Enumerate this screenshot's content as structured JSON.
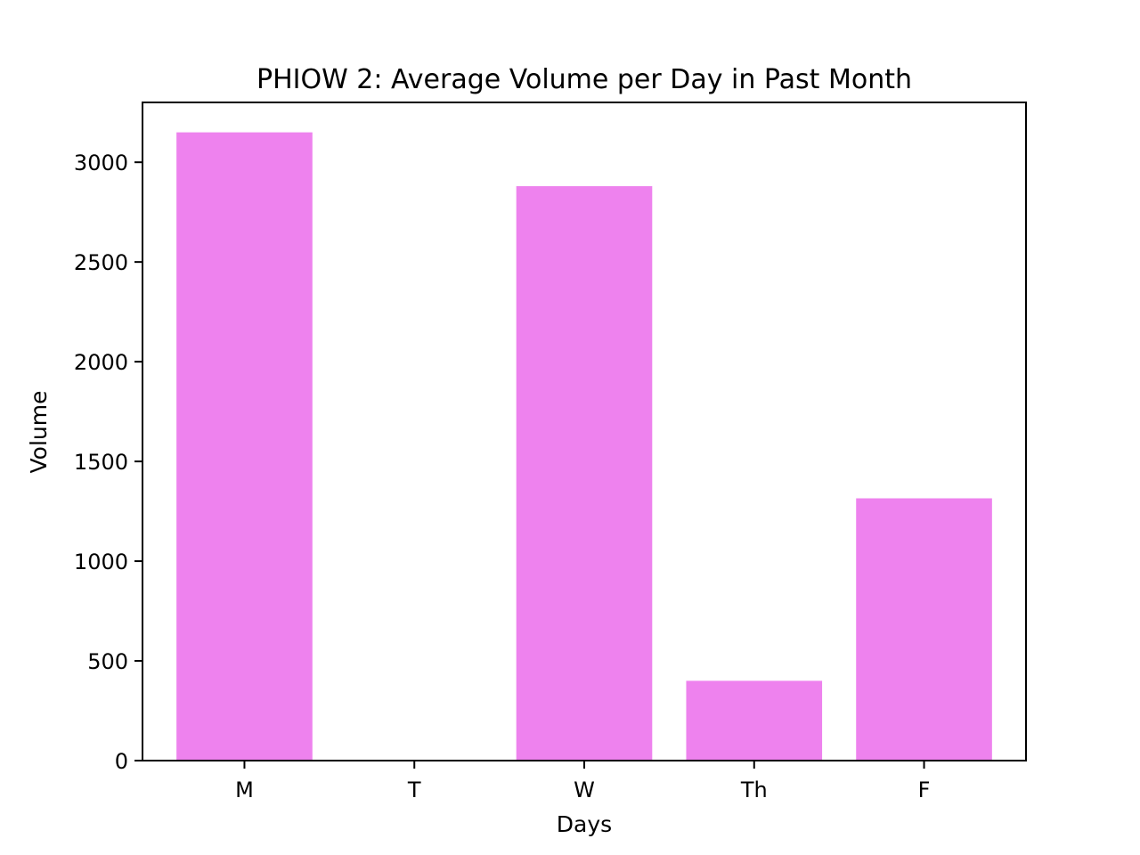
{
  "chart_data": {
    "type": "bar",
    "title": "PHIOW 2: Average Volume per Day in Past Month",
    "xlabel": "Days",
    "ylabel": "Volume",
    "categories": [
      "M",
      "T",
      "W",
      "Th",
      "F"
    ],
    "values": [
      3150,
      0,
      2880,
      400,
      1315
    ],
    "ylim": [
      0,
      3300
    ],
    "yticks": [
      0,
      500,
      1000,
      1500,
      2000,
      2500,
      3000
    ],
    "grid": false,
    "legend": "none",
    "bar_color": "#ee82ee"
  }
}
